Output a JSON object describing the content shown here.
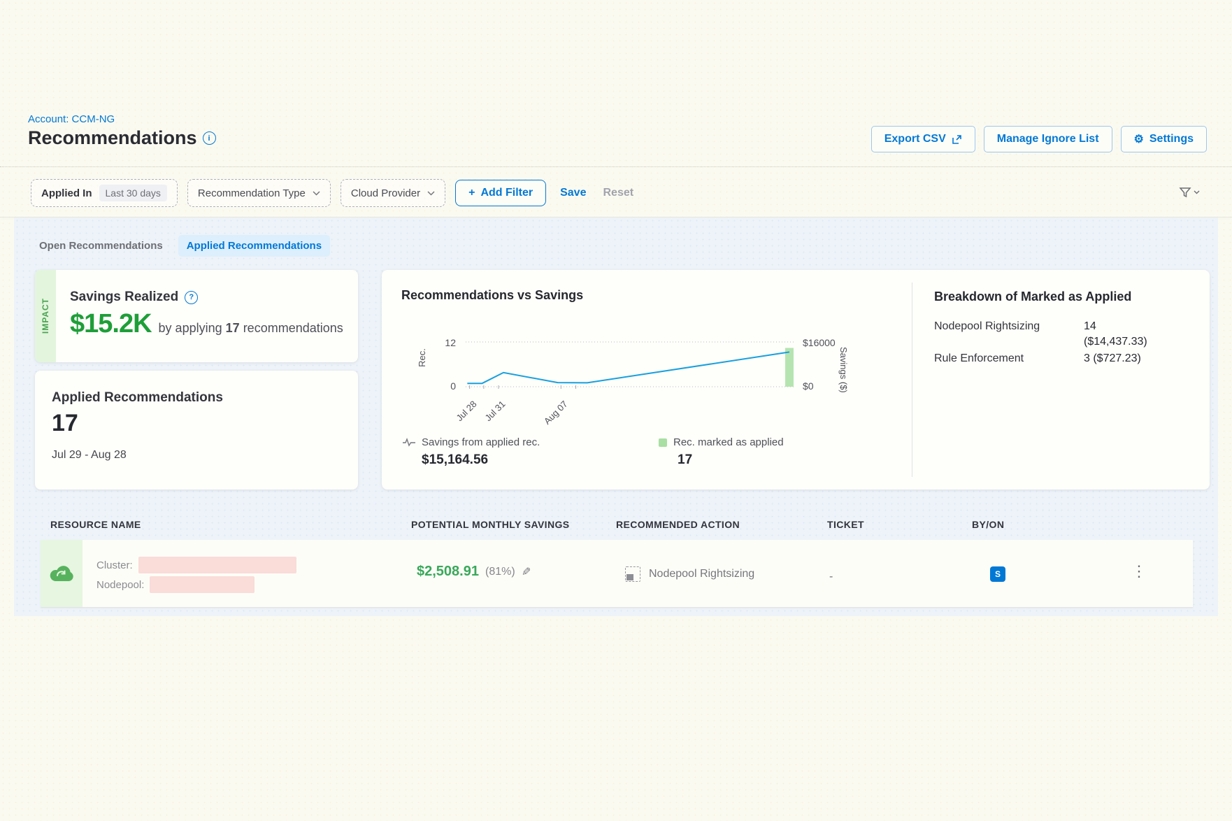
{
  "page": {
    "account": "Account: CCM-NG",
    "title": "Recommendations",
    "info_icon": "i"
  },
  "actions": {
    "export_csv": "Export CSV",
    "manage_ignore": "Manage Ignore List",
    "settings": "Settings",
    "gear": "⚙"
  },
  "filters": {
    "applied_in_label": "Applied In",
    "applied_in_value": "Last 30 days",
    "recommendation_type": "Recommendation Type",
    "cloud_provider": "Cloud Provider",
    "add_filter": "Add Filter",
    "add_plus": "+",
    "save": "Save",
    "reset": "Reset"
  },
  "tabs": [
    {
      "label": "Open Recommendations",
      "active": false
    },
    {
      "label": "Applied Recommendations",
      "active": true
    }
  ],
  "impact": {
    "ribbon": "IMPACT",
    "title": "Savings Realized",
    "help_icon": "?",
    "amount": "$15.2K",
    "pre": "by applying",
    "count": "17",
    "post": "recommendations"
  },
  "applied": {
    "title": "Applied Recommendations",
    "count": "17",
    "range": "Jul 29 - Aug 28"
  },
  "chart_data": {
    "type": "line",
    "title": "Recommendations vs Savings",
    "grid": "dotted horizontal at min and max",
    "legend_position": "below",
    "y_left": {
      "label": "Rec.",
      "range": [
        0,
        12
      ],
      "tick_top": "12",
      "tick_bottom": "0"
    },
    "y_right": {
      "label": "Savings ($)",
      "range": [
        0,
        16000
      ],
      "tick_top": "$16000",
      "tick_bottom": "$0"
    },
    "x_ticks": [
      {
        "label": "Jul 28",
        "f": 0.012
      },
      {
        "label": "Jul 31",
        "f": 0.1
      },
      {
        "label": "Aug 07",
        "f": 0.29
      }
    ],
    "series": [
      {
        "name": "Savings from applied rec.",
        "type": "line",
        "color": "#18a0df",
        "total_label": "$15,164.56",
        "points_f_rec": [
          [
            0.005,
            0.9
          ],
          [
            0.05,
            0.9
          ],
          [
            0.115,
            3.8
          ],
          [
            0.28,
            1.1
          ],
          [
            0.37,
            1.05
          ],
          [
            0.985,
            9.3
          ]
        ]
      },
      {
        "name": "Rec. marked as applied",
        "type": "bar",
        "color": "#a9dfa2",
        "total_label": "17",
        "bar": {
          "f": 0.985,
          "top_rec": 10.4
        }
      }
    ]
  },
  "breakdown": {
    "title": "Breakdown of Marked as Applied",
    "rows": [
      {
        "label": "Nodepool Rightsizing",
        "value_line1": "14",
        "value_line2": "($14,437.33)"
      },
      {
        "label": "Rule Enforcement",
        "value_line1": "3 ($727.23)",
        "value_line2": ""
      }
    ]
  },
  "table": {
    "columns": [
      "RESOURCE NAME",
      "POTENTIAL MONTHLY SAVINGS",
      "RECOMMENDED ACTION",
      "TICKET",
      "BY/ON"
    ],
    "row": {
      "cluster_label": "Cluster:",
      "nodepool_label": "Nodepool:",
      "savings": "$2,508.91",
      "savings_pct": "(81%)",
      "action": "Nodepool Rightsizing",
      "ticket": "-",
      "avatar": "S",
      "menu": "⋮"
    }
  },
  "colors": {
    "primary_blue": "#0278d5",
    "savings_green": "#1e9e38",
    "row_savings_green": "#39a85b",
    "line_blue": "#18a0df",
    "bar_green": "#a9dfa2",
    "impact_ribbon_bg": "#e3f5dc",
    "redaction_pink": "#fadcd9",
    "band_bg": "#edf3f8"
  }
}
